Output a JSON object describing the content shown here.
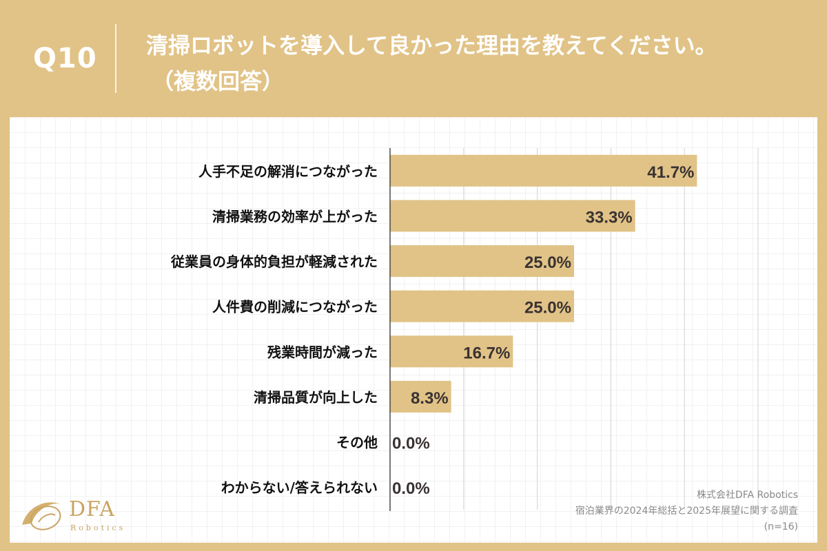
{
  "header": {
    "question_number": "Q10",
    "title_line1": "清掃ロボットを導入して良かった理由を教えてください。",
    "title_line2": "（複数回答）"
  },
  "chart_data": {
    "type": "bar",
    "orientation": "horizontal",
    "categories": [
      "人手不足の解消につながった",
      "清掃業務の効率が上がった",
      "従業員の身体的負担が軽減された",
      "人件費の削減につながった",
      "残業時間が減った",
      "清掃品質が向上した",
      "その他",
      "わからない/答えられない"
    ],
    "values": [
      41.7,
      33.3,
      25.0,
      25.0,
      16.7,
      8.3,
      0.0,
      0.0
    ],
    "value_labels": [
      "41.7%",
      "33.3%",
      "25.0%",
      "25.0%",
      "16.7%",
      "8.3%",
      "0.0%",
      "0.0%"
    ],
    "unit": "%",
    "xlim": [
      0,
      50
    ],
    "grid": true,
    "bar_color": "#e1c387"
  },
  "brand": {
    "logo_text": "DFA",
    "logo_subtext": "Robotics"
  },
  "source": {
    "company": "株式会社DFA Robotics",
    "survey": "宿泊業界の2024年総括と2025年展望に関する調査",
    "sample": "(n=16)"
  },
  "colors": {
    "accent": "#e1c387",
    "bar": "#e1c387",
    "text_dark": "#3a3232"
  }
}
